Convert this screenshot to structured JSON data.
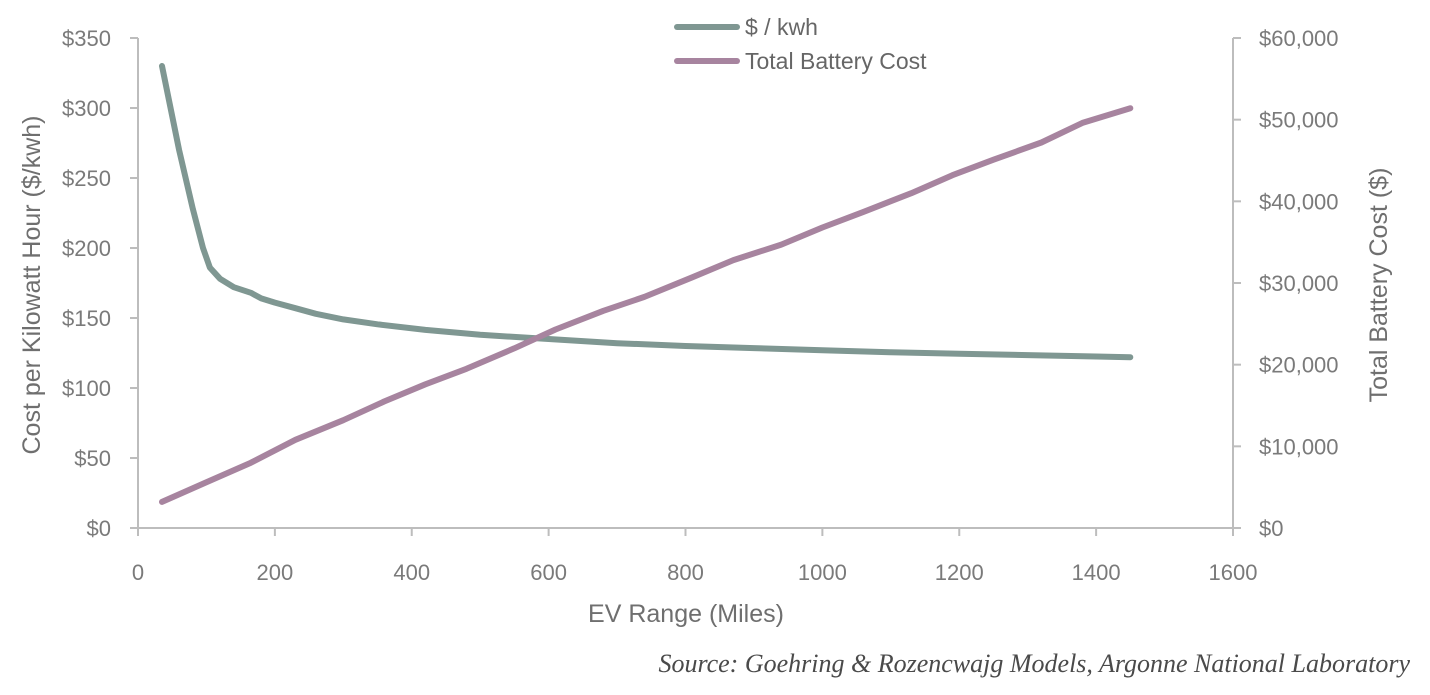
{
  "chart_data": {
    "type": "line",
    "xlabel": "EV Range (Miles)",
    "ylabel_left": "Cost per Kilowatt Hour ($/kwh)",
    "ylabel_right": "Total Battery Cost ($)",
    "xlim": [
      0,
      1600
    ],
    "ylim_left": [
      0,
      350
    ],
    "ylim_right": [
      0,
      60000
    ],
    "x_ticks": [
      "0",
      "200",
      "400",
      "600",
      "800",
      "1000",
      "1200",
      "1400",
      "1600"
    ],
    "y_ticks_left": [
      "$0",
      "$50",
      "$100",
      "$150",
      "$200",
      "$250",
      "$300",
      "$350"
    ],
    "y_ticks_right": [
      "$0",
      "$10,000",
      "$20,000",
      "$30,000",
      "$40,000",
      "$50,000",
      "$60,000"
    ],
    "grid": false,
    "legend_position": "top-center",
    "series": [
      {
        "name": "$ / kwh",
        "axis": "left",
        "color": "#7f9792",
        "x": [
          35,
          60,
          80,
          95,
          105,
          120,
          140,
          165,
          180,
          200,
          230,
          260,
          300,
          350,
          420,
          500,
          600,
          700,
          800,
          900,
          1000,
          1100,
          1200,
          1300,
          1400,
          1450
        ],
        "y": [
          330,
          270,
          228,
          200,
          186,
          178,
          172,
          168,
          164,
          161,
          157,
          153,
          149,
          145.5,
          141.5,
          138,
          135,
          132,
          130,
          128.5,
          127,
          125.5,
          124.5,
          123.5,
          122.5,
          122
        ]
      },
      {
        "name": "Total Battery Cost",
        "axis": "right",
        "color": "#a7849f",
        "x": [
          35,
          100,
          165,
          230,
          300,
          360,
          420,
          480,
          550,
          610,
          680,
          740,
          810,
          870,
          940,
          1000,
          1060,
          1130,
          1190,
          1250,
          1320,
          1380,
          1450
        ],
        "y": [
          3200,
          5600,
          8000,
          10800,
          13200,
          15500,
          17600,
          19500,
          22000,
          24300,
          26600,
          28300,
          30700,
          32800,
          34700,
          36800,
          38700,
          41000,
          43200,
          45100,
          47200,
          49600,
          51400
        ]
      }
    ],
    "annotations": [
      "Source: Goehring & Rozencwajg Models, Argonne National Laboratory"
    ]
  }
}
